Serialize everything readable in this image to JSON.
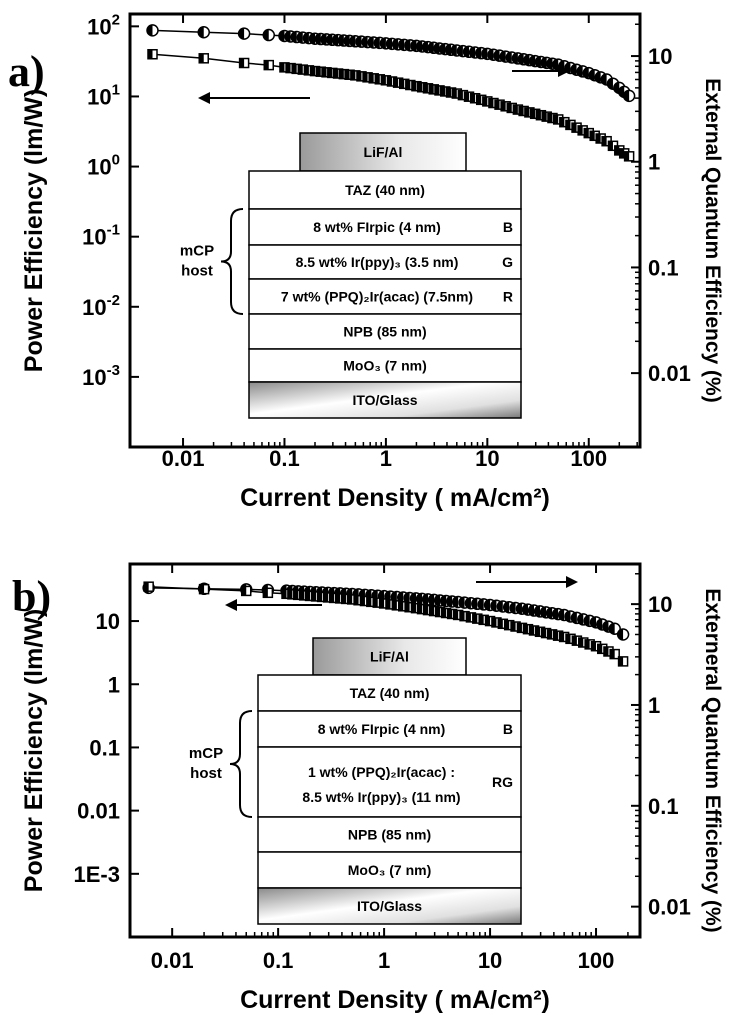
{
  "chart_data": [
    {
      "panel_label": "a)",
      "type": "scatter",
      "xlabel": "Current Density ( mA/cm²)",
      "ylabel": "Power Efficiency (lm/W)",
      "y2label": "External Quantum Efficiency (%)",
      "x_scale": "log",
      "y_scale": "log",
      "y2_scale": "log",
      "xlim": [
        0.003,
        320
      ],
      "ylim": [
        0.0001,
        150
      ],
      "y2lim": [
        0.002,
        25
      ],
      "x_ticks": [
        "0.01",
        "0.1",
        "1",
        "10",
        "100"
      ],
      "y_ticks": [
        {
          "base": "10",
          "exp": "2",
          "value": 100
        },
        {
          "base": "10",
          "exp": "1",
          "value": 10
        },
        {
          "base": "10",
          "exp": "0",
          "value": 1
        },
        {
          "base": "10",
          "exp": "-1",
          "value": 0.1
        },
        {
          "base": "10",
          "exp": "-2",
          "value": 0.01
        },
        {
          "base": "10",
          "exp": "-3",
          "value": 0.001
        }
      ],
      "y2_ticks": [
        "10",
        "1",
        "0.1",
        "0.01"
      ],
      "series": [
        {
          "marker": "half-filled circle",
          "axis": "right",
          "x": [
            0.005,
            0.016,
            0.04,
            0.07,
            0.1,
            0.2,
            0.5,
            1,
            2,
            5,
            10,
            20,
            50,
            100,
            150,
            200,
            250
          ],
          "y": [
            17.5,
            16.8,
            16.3,
            15.8,
            15.5,
            14.6,
            13.8,
            13.2,
            12.5,
            11.3,
            10.5,
            9.5,
            8.3,
            6.9,
            6.0,
            5.0,
            4.2
          ]
        },
        {
          "marker": "half-filled square",
          "axis": "left",
          "x": [
            0.005,
            0.016,
            0.04,
            0.07,
            0.1,
            0.2,
            0.5,
            1,
            2,
            5,
            10,
            20,
            50,
            100,
            150,
            200,
            250
          ],
          "y": [
            40,
            35,
            30,
            28,
            26,
            23,
            20,
            17,
            14,
            11,
            8.5,
            6.5,
            4.7,
            3.0,
            2.3,
            1.7,
            1.4
          ]
        }
      ],
      "device_layers": [
        {
          "label": "LiF/Al",
          "tag": ""
        },
        {
          "label": "TAZ (40 nm)",
          "tag": ""
        },
        {
          "label": "8 wt% FIrpic (4 nm)",
          "tag": "B"
        },
        {
          "label": "8.5 wt% Ir(ppy)₃ (3.5 nm)",
          "tag": "G"
        },
        {
          "label": "7 wt% (PPQ)₂Ir(acac) (7.5nm)",
          "tag": "R"
        },
        {
          "label": "NPB (85 nm)",
          "tag": ""
        },
        {
          "label": "MoO₃ (7 nm)",
          "tag": ""
        },
        {
          "label": "ITO/Glass",
          "tag": ""
        }
      ],
      "host_label": [
        "mCP",
        "host"
      ]
    },
    {
      "panel_label": "b)",
      "type": "scatter",
      "xlabel": "Current Density ( mA/cm²)",
      "ylabel": "Power Efficiency (lm/W)",
      "y2label": "Externeral Quantum Efficiency (%)",
      "x_scale": "log",
      "y_scale": "log",
      "y2_scale": "log",
      "xlim": [
        0.004,
        260
      ],
      "ylim": [
        0.0001,
        80
      ],
      "y2lim": [
        0.005,
        25
      ],
      "x_ticks": [
        "0.01",
        "0.1",
        "1",
        "10",
        "100"
      ],
      "y_ticks": [
        {
          "base": "10",
          "exp": "",
          "value": 10
        },
        {
          "base": "1",
          "exp": "",
          "value": 1
        },
        {
          "base": "0.1",
          "exp": "",
          "value": 0.1
        },
        {
          "base": "0.01",
          "exp": "",
          "value": 0.01
        },
        {
          "base": "1E-3",
          "exp": "",
          "value": 0.001
        }
      ],
      "y2_ticks": [
        "10",
        "1",
        "0.1",
        "0.01"
      ],
      "series": [
        {
          "marker": "half-filled circle",
          "axis": "right",
          "x": [
            0.006,
            0.02,
            0.05,
            0.08,
            0.12,
            0.2,
            0.5,
            1,
            2,
            5,
            10,
            20,
            50,
            100,
            150,
            180
          ],
          "y": [
            14.5,
            14.2,
            14.0,
            13.8,
            13.6,
            13.2,
            12.6,
            12.0,
            11.4,
            10.5,
            9.8,
            9.0,
            7.8,
            6.6,
            5.7,
            5.0
          ]
        },
        {
          "marker": "half-filled square",
          "axis": "left",
          "x": [
            0.006,
            0.02,
            0.05,
            0.08,
            0.12,
            0.2,
            0.5,
            1,
            2,
            5,
            10,
            20,
            50,
            100,
            150,
            180
          ],
          "y": [
            35,
            32,
            30,
            28,
            27,
            25,
            22,
            19,
            16,
            12.5,
            10,
            7.8,
            5.6,
            4.0,
            3.0,
            2.3
          ]
        }
      ],
      "device_layers": [
        {
          "label": "LiF/Al",
          "tag": ""
        },
        {
          "label": "TAZ (40 nm)",
          "tag": ""
        },
        {
          "label": "8 wt% FIrpic (4 nm)",
          "tag": "B"
        },
        {
          "label": "1 wt% (PPQ)₂Ir(acac) :",
          "label2": "8.5 wt% Ir(ppy)₃ (11 nm)",
          "tag": "RG"
        },
        {
          "label": "NPB (85 nm)",
          "tag": ""
        },
        {
          "label": "MoO₃ (7 nm)",
          "tag": ""
        },
        {
          "label": "ITO/Glass",
          "tag": ""
        }
      ],
      "host_label": [
        "mCP",
        "host"
      ]
    }
  ]
}
